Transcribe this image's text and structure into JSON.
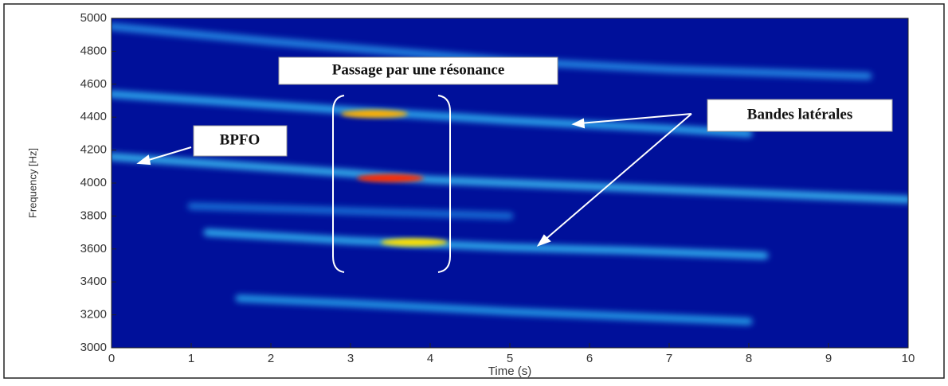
{
  "chart_data": {
    "type": "spectrogram",
    "xlabel": "Time (s)",
    "ylabel": "Frequency [Hz]",
    "xlim": [
      0,
      10
    ],
    "ylim": [
      3000,
      5000
    ],
    "xticks": [
      0,
      1,
      2,
      3,
      4,
      5,
      6,
      7,
      8,
      9,
      10
    ],
    "yticks": [
      3000,
      3200,
      3400,
      3600,
      3800,
      4000,
      4200,
      4400,
      4600,
      4800,
      5000
    ],
    "background": "#00109a",
    "ridges": [
      {
        "color": "#3fd2ff",
        "x": [
          0,
          3,
          4,
          6,
          8,
          10
        ],
        "values": [
          4160,
          4060,
          4020,
          3980,
          3940,
          3900
        ]
      },
      {
        "color": "#35c6ff",
        "x": [
          0,
          3,
          5,
          7,
          8
        ],
        "values": [
          4540,
          4440,
          4380,
          4330,
          4300
        ]
      },
      {
        "color": "#38cbff",
        "x": [
          1.2,
          3,
          5,
          6.5,
          8.2
        ],
        "values": [
          3700,
          3650,
          3610,
          3590,
          3560
        ]
      },
      {
        "color": "#2ab4f5",
        "x": [
          1.6,
          3,
          5,
          7,
          8
        ],
        "values": [
          3300,
          3270,
          3220,
          3180,
          3160
        ]
      },
      {
        "color": "#2a9cf0",
        "x": [
          0,
          2,
          5,
          7,
          9.5
        ],
        "values": [
          4950,
          4860,
          4740,
          4690,
          4650
        ]
      },
      {
        "color": "#1f7fe0",
        "x": [
          1,
          3,
          5
        ],
        "values": [
          3860,
          3830,
          3800
        ]
      }
    ],
    "hotspots": [
      {
        "color": "#ff2a00",
        "x": 3.5,
        "values": 4030
      },
      {
        "color": "#ffb000",
        "x": 3.3,
        "values": 4420
      },
      {
        "color": "#ffe000",
        "x": 3.8,
        "values": 3640
      }
    ],
    "annotations": [
      "Passage par une résonance",
      "BPFO",
      "Bandes latérales"
    ]
  }
}
